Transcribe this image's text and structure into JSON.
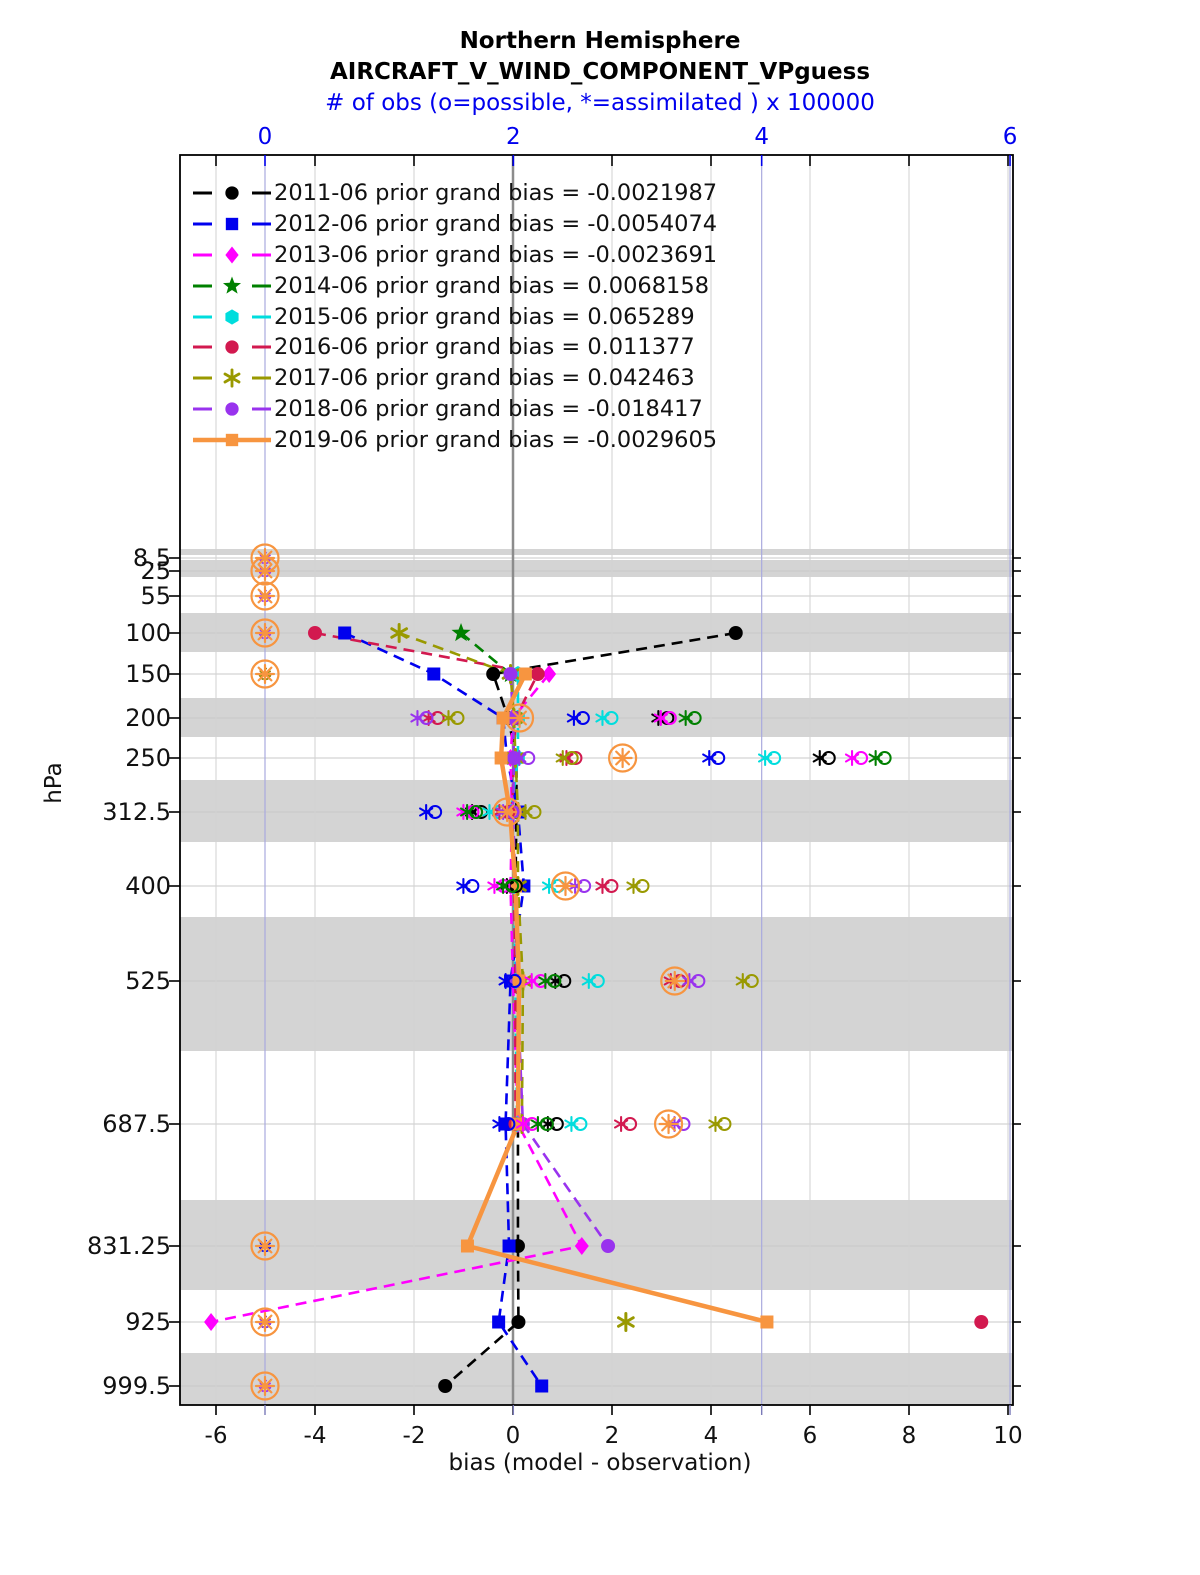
{
  "title_line1": "Northern Hemisphere",
  "title_line2": "AIRCRAFT_V_WIND_COMPONENT_VPguess",
  "subtitle": "# of obs (o=possible, *=assimilated ) x 100000",
  "xlabel_bottom": "bias (model - observation)",
  "ylabel_left": "hPa",
  "chart_data": {
    "type": "line",
    "title": "Northern Hemisphere AIRCRAFT_V_WIND_COMPONENT_VPguess",
    "grid": true,
    "legend_position": "upper-left-inside",
    "pressure_levels_hPa": [
      8.5,
      25,
      55,
      100,
      150,
      200,
      250,
      312.5,
      400,
      525,
      687.5,
      831.25,
      925,
      999.5
    ],
    "y_tick_labels": [
      "8.5",
      "25",
      "55",
      "100",
      "150",
      "200",
      "250",
      "312.5",
      "400",
      "525",
      "687.5",
      "831.25",
      "925",
      "999.5"
    ],
    "bias_axis": {
      "label": "bias (model - observation)",
      "ticks": [
        -6,
        -4,
        -2,
        0,
        2,
        4,
        6,
        8,
        10
      ],
      "color": "#111111"
    },
    "obs_axis": {
      "label": "# of obs (o=possible, *=assimilated ) x 100000",
      "ticks": [
        0,
        2,
        4,
        6
      ],
      "color": "#0000ee"
    },
    "zero_line_bias": 0,
    "band_color": "#d4d4d4",
    "series": [
      {
        "name": "2011-06",
        "grand_bias": "-0.0021987",
        "legend": "2011-06 prior grand bias = -0.0021987",
        "color": "#000000",
        "marker": "circle",
        "line": "dashed",
        "bias": [
          null,
          null,
          null,
          4.5,
          -0.4,
          -0.1,
          0.07,
          0.07,
          0.05,
          0.08,
          0.1,
          0.1,
          0.11,
          -1.37
        ],
        "obs": [
          null,
          null,
          null,
          null,
          null,
          3.2,
          4.5,
          1.7,
          1.98,
          2.37,
          2.31,
          null,
          0.0,
          null
        ]
      },
      {
        "name": "2012-06",
        "grand_bias": "-0.0054074",
        "legend": "2012-06 prior grand bias = -0.0054074",
        "color": "#0000ee",
        "marker": "square",
        "line": "dashed",
        "bias": [
          null,
          null,
          null,
          -3.4,
          -1.6,
          -0.2,
          -0.12,
          0.1,
          0.22,
          -0.05,
          -0.15,
          -0.08,
          -0.29,
          0.58
        ],
        "obs": [
          null,
          null,
          null,
          null,
          null,
          2.52,
          3.61,
          1.33,
          1.63,
          1.97,
          1.92,
          0.0,
          0.0,
          null
        ]
      },
      {
        "name": "2013-06",
        "grand_bias": "-0.0023691",
        "legend": "2013-06 prior grand bias = -0.0023691",
        "color": "#ff00ff",
        "marker": "diamond",
        "line": "dashed",
        "bias": [
          null,
          null,
          null,
          null,
          0.73,
          0.0,
          -0.05,
          -0.02,
          -0.05,
          0.0,
          0.1,
          1.39,
          -6.1,
          null
        ],
        "obs": [
          null,
          null,
          null,
          null,
          0.0,
          3.22,
          4.76,
          1.63,
          1.88,
          2.18,
          2.11,
          null,
          null,
          0.0
        ]
      },
      {
        "name": "2014-06",
        "grand_bias": "0.0068158",
        "legend": "2014-06 prior grand bias = 0.0068158",
        "color": "#008000",
        "marker": "star",
        "line": "dashed",
        "bias": [
          null,
          null,
          null,
          -1.05,
          -0.05,
          null,
          null,
          null,
          null,
          null,
          null,
          null,
          null,
          null
        ],
        "obs": [
          null,
          null,
          null,
          null,
          0.0,
          3.42,
          4.95,
          1.66,
          1.95,
          2.29,
          2.23,
          null,
          null,
          null
        ]
      },
      {
        "name": "2015-06",
        "grand_bias": "0.065289",
        "legend": "2015-06 prior grand bias = 0.065289",
        "color": "#00dddd",
        "marker": "hexagon",
        "line": "dashed",
        "bias": [
          null,
          null,
          null,
          null,
          0.1,
          0.1,
          0.1,
          -0.04,
          0.02,
          0.05,
          0.08,
          null,
          null,
          null
        ],
        "obs": [
          null,
          null,
          null,
          null,
          null,
          2.75,
          4.06,
          1.84,
          2.32,
          2.64,
          2.5,
          null,
          null,
          null
        ]
      },
      {
        "name": "2016-06",
        "grand_bias": "0.011377",
        "legend": "2016-06 prior grand bias = 0.011377",
        "color": "#d2194f",
        "marker": "circle",
        "line": "dashed",
        "bias": [
          null,
          null,
          null,
          -4.0,
          0.5,
          0.05,
          0.02,
          -0.02,
          0.02,
          0.05,
          0.05,
          null,
          9.46,
          null
        ],
        "obs": [
          null,
          null,
          null,
          null,
          0.0,
          1.35,
          2.46,
          1.92,
          2.75,
          3.3,
          2.9,
          null,
          null,
          null
        ]
      },
      {
        "name": "2017-06",
        "grand_bias": "0.042463",
        "legend": "2017-06 prior grand bias = 0.042463",
        "color": "#999900",
        "marker": "asterisk",
        "line": "dashed",
        "bias": [
          null,
          null,
          null,
          -2.3,
          -0.05,
          0.02,
          0.05,
          0.1,
          0.1,
          0.2,
          0.18,
          null,
          2.28,
          null
        ],
        "obs": [
          null,
          null,
          null,
          null,
          0.0,
          1.51,
          2.43,
          2.13,
          3.0,
          3.88,
          3.66,
          null,
          null,
          null
        ]
      },
      {
        "name": "2018-06",
        "grand_bias": "-0.018417",
        "legend": "2018-06 prior grand bias = -0.018417",
        "color": "#9933ee",
        "marker": "circle",
        "line": "dashed",
        "bias": [
          null,
          null,
          null,
          null,
          -0.05,
          0.0,
          0.02,
          0.0,
          0.05,
          0.08,
          0.2,
          1.92,
          null,
          null
        ],
        "obs": [
          0.0,
          0.0,
          0.0,
          0.0,
          null,
          1.26,
          2.08,
          1.95,
          2.53,
          3.45,
          3.33,
          null,
          0.0,
          0.0
        ]
      },
      {
        "name": "2019-06",
        "grand_bias": "-0.0029605",
        "legend": "2019-06 prior grand bias = -0.0029605",
        "color": "#f79540",
        "marker": "square",
        "line": "solid",
        "bias": [
          null,
          null,
          null,
          null,
          0.25,
          -0.2,
          -0.24,
          -0.06,
          0.05,
          0.12,
          0.1,
          -0.92,
          5.13,
          null
        ],
        "obs": [
          0.0,
          0.0,
          0.0,
          0.0,
          0.0,
          2.05,
          2.88,
          1.95,
          2.42,
          3.3,
          3.25,
          0.0,
          0.0,
          0.0
        ]
      }
    ]
  }
}
